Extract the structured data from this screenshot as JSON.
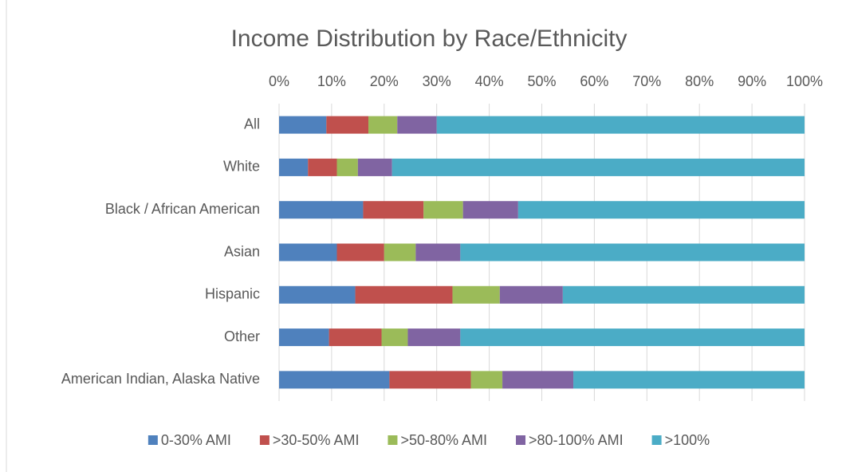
{
  "chart_data": {
    "type": "stacked_bar_horizontal",
    "title": "Income Distribution by Race/Ethnicity",
    "categories": [
      "All",
      "White",
      "Black / African American",
      "Asian",
      "Hispanic",
      "Other",
      "American Indian, Alaska Native"
    ],
    "series": [
      {
        "name": "0-30% AMI",
        "color": "#4f81bd",
        "values": [
          9,
          5.5,
          16,
          11,
          14.5,
          9.5,
          21
        ]
      },
      {
        "name": ">30-50% AMI",
        "color": "#c0504d",
        "values": [
          8,
          5.5,
          11.5,
          9,
          18.5,
          10,
          15.5
        ]
      },
      {
        "name": ">50-80% AMI",
        "color": "#9bbb59",
        "values": [
          5.5,
          4,
          7.5,
          6,
          9,
          5,
          6
        ]
      },
      {
        "name": ">80-100% AMI",
        "color": "#8064a2",
        "values": [
          7.5,
          6.5,
          10.5,
          8.5,
          12,
          10,
          13.5
        ]
      },
      {
        "name": ">100%",
        "color": "#4bacc6",
        "values": [
          70,
          78.5,
          54.5,
          65.5,
          46,
          65.5,
          44
        ]
      }
    ],
    "xlim": [
      0,
      100
    ],
    "xticks": [
      {
        "value": 0,
        "label": "0%"
      },
      {
        "value": 10,
        "label": "10%"
      },
      {
        "value": 20,
        "label": "20%"
      },
      {
        "value": 30,
        "label": "30%"
      },
      {
        "value": 40,
        "label": "40%"
      },
      {
        "value": 50,
        "label": "50%"
      },
      {
        "value": 60,
        "label": "60%"
      },
      {
        "value": 70,
        "label": "70%"
      },
      {
        "value": 80,
        "label": "80%"
      },
      {
        "value": 90,
        "label": "90%"
      },
      {
        "value": 100,
        "label": "100%"
      }
    ],
    "grid": true,
    "legend": "bottom"
  }
}
